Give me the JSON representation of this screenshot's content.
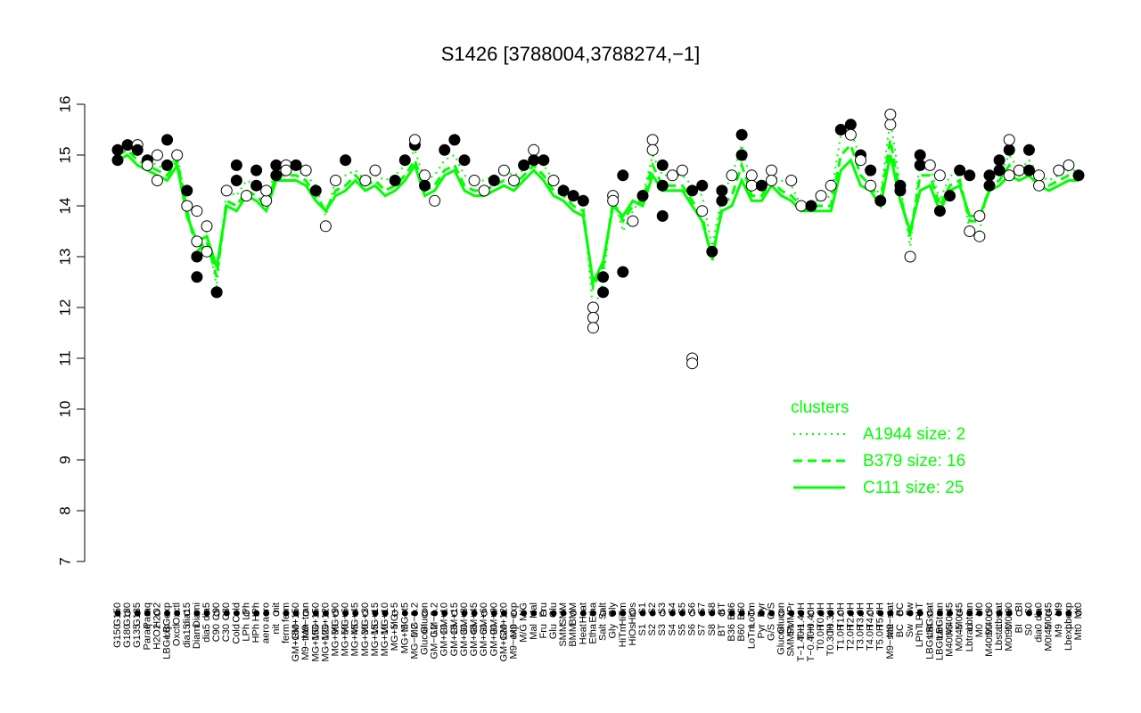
{
  "chart_data": {
    "type": "line",
    "title": "S1426 [3788004,3788274,−1]",
    "xlabel": "",
    "ylabel": "",
    "ylim": [
      7,
      16
    ],
    "yticks": [
      "7",
      "8",
      "9",
      "10",
      "11",
      "12",
      "13",
      "14",
      "15",
      "16"
    ],
    "x_tick_labels": [
      "G150",
      "G180",
      "G135",
      "Paraq",
      "H2O2",
      "LBGexp",
      "Oxctl",
      "dia15",
      "Diami",
      "dia5",
      "C90",
      "C30",
      "Cold",
      "LPh",
      "HPh",
      "aero",
      "nit",
      "ferm",
      "GM+150",
      "M9−tran",
      "MG+150",
      "MG+120",
      "MG+90",
      "MG+60",
      "MG+45",
      "MG+30",
      "MG+15",
      "MG+10",
      "MG+5",
      "MG+t5",
      "MG−0.2",
      "Glucon",
      "GM−0.2",
      "GM+10",
      "GM+15",
      "GM+30",
      "GM+45",
      "GM+60",
      "GM+90",
      "GM+120",
      "M9−exp",
      "M/G",
      "Mal",
      "Fru",
      "Glu",
      "SMM",
      "BMM",
      "Heat",
      "Etha",
      "Salt",
      "Gly",
      "HiTm",
      "HiOs",
      "S1",
      "S2",
      "S3",
      "S4",
      "S5",
      "S6",
      "S7",
      "S8",
      "BT",
      "B36",
      "B60",
      "LoTm",
      "Pyr",
      "G/S",
      "Glucon",
      "SMMPr",
      "T−1.40H",
      "T−0.40H",
      "T0.0H",
      "T0.30H",
      "T1.0H",
      "T2.0H",
      "T3.0H",
      "T4.0H",
      "T5.0H",
      "M9−stat",
      "BC",
      "Sw",
      "LPhT",
      "LBGstat",
      "LBGtran",
      "M40t45",
      "M0t45",
      "Lbtran",
      "M0",
      "M40t90",
      "Lbstat",
      "M0t90",
      "BI",
      "S0",
      "dia0",
      "M0t45",
      "M9",
      "Lbexp",
      "Mt0"
    ],
    "series": [
      {
        "name": "A1944 size: 2",
        "style": "dotted",
        "values": [
          15.1,
          15.2,
          15.0,
          14.9,
          14.8,
          14.7,
          15.0,
          14.0,
          13.0,
          13.5,
          12.4,
          14.3,
          14.2,
          14.5,
          14.4,
          14.2,
          14.7,
          14.7,
          14.7,
          14.6,
          14.4,
          13.8,
          14.5,
          14.6,
          14.7,
          14.5,
          14.6,
          14.5,
          14.6,
          14.8,
          15.1,
          14.5,
          14.6,
          14.9,
          15.0,
          14.6,
          14.5,
          14.5,
          14.6,
          14.7,
          14.6,
          14.7,
          14.9,
          14.8,
          14.5,
          14.4,
          14.1,
          14.1,
          11.9,
          12.5,
          14.2,
          13.5,
          13.9,
          14.2,
          15.0,
          14.6,
          14.6,
          14.6,
          14.4,
          14.2,
          13.2,
          14.2,
          14.6,
          15.2,
          14.4,
          14.4,
          14.6,
          14.5,
          14.4,
          14.0,
          14.1,
          14.1,
          14.2,
          15.4,
          15.5,
          14.9,
          14.5,
          14.2,
          15.7,
          14.4,
          13.2,
          14.9,
          14.8,
          14.1,
          14.6,
          14.6,
          13.5,
          13.5,
          14.5,
          14.6,
          15.0,
          14.7,
          14.9,
          14.6,
          14.5,
          14.6,
          14.7,
          14.7
        ]
      },
      {
        "name": "B379 size: 16",
        "style": "dashed",
        "values": [
          15.0,
          15.1,
          14.9,
          14.8,
          14.7,
          14.6,
          14.9,
          13.9,
          13.1,
          13.3,
          12.6,
          14.1,
          14.0,
          14.3,
          14.2,
          14.0,
          14.6,
          14.6,
          14.6,
          14.5,
          14.2,
          13.9,
          14.3,
          14.4,
          14.6,
          14.4,
          14.5,
          14.3,
          14.4,
          14.6,
          14.9,
          14.3,
          14.4,
          14.7,
          14.8,
          14.4,
          14.3,
          14.3,
          14.4,
          14.5,
          14.4,
          14.6,
          14.8,
          14.6,
          14.3,
          14.2,
          14.0,
          13.9,
          12.4,
          12.8,
          14.1,
          13.7,
          14.0,
          14.1,
          14.8,
          14.4,
          14.4,
          14.4,
          14.1,
          13.8,
          12.9,
          14.0,
          14.2,
          14.8,
          14.2,
          14.2,
          14.5,
          14.3,
          14.2,
          14.0,
          14.0,
          14.0,
          14.0,
          15.0,
          15.2,
          14.6,
          14.4,
          14.1,
          15.3,
          14.2,
          13.4,
          14.6,
          14.6,
          14.0,
          14.4,
          14.5,
          13.7,
          13.7,
          14.4,
          14.5,
          14.8,
          14.6,
          14.7,
          14.5,
          14.4,
          14.5,
          14.6,
          14.6
        ]
      },
      {
        "name": "C111 size: 25",
        "style": "solid",
        "values": [
          14.9,
          15.0,
          14.8,
          14.7,
          14.6,
          14.5,
          14.8,
          13.8,
          13.3,
          13.4,
          12.8,
          14.0,
          13.9,
          14.2,
          14.1,
          13.9,
          14.5,
          14.5,
          14.5,
          14.4,
          14.1,
          13.9,
          14.2,
          14.3,
          14.5,
          14.3,
          14.4,
          14.2,
          14.3,
          14.5,
          14.8,
          14.2,
          14.3,
          14.6,
          14.7,
          14.3,
          14.2,
          14.2,
          14.3,
          14.4,
          14.3,
          14.5,
          14.7,
          14.5,
          14.2,
          14.1,
          13.9,
          13.8,
          12.5,
          12.9,
          14.0,
          13.8,
          14.1,
          14.0,
          14.6,
          14.3,
          14.3,
          14.3,
          14.0,
          13.7,
          13.0,
          13.9,
          14.0,
          14.5,
          14.1,
          14.1,
          14.4,
          14.2,
          14.1,
          13.9,
          13.9,
          13.9,
          13.9,
          14.7,
          14.9,
          14.4,
          14.3,
          14.0,
          15.0,
          14.1,
          13.5,
          14.3,
          14.4,
          13.9,
          14.3,
          14.4,
          13.8,
          13.8,
          14.3,
          14.4,
          14.6,
          14.5,
          14.6,
          14.4,
          14.3,
          14.4,
          14.5,
          14.5
        ]
      }
    ],
    "points": [
      {
        "x": "G150",
        "y": 15.1,
        "filled": true
      },
      {
        "x": "G150",
        "y": 14.9,
        "filled": true
      },
      {
        "x": "G180",
        "y": 15.2,
        "filled": true
      },
      {
        "x": "G135",
        "y": 15.2,
        "filled": false
      },
      {
        "x": "G135",
        "y": 15.1,
        "filled": true
      },
      {
        "x": "H2O2",
        "y": 15.0,
        "filled": false
      },
      {
        "x": "Paraq",
        "y": 14.9,
        "filled": true
      },
      {
        "x": "Paraq",
        "y": 14.8,
        "filled": false
      },
      {
        "x": "H2O2",
        "y": 14.5,
        "filled": false
      },
      {
        "x": "Oxctl",
        "y": 15.0,
        "filled": false
      },
      {
        "x": "LBGexp",
        "y": 15.3,
        "filled": true
      },
      {
        "x": "LBGexp",
        "y": 14.8,
        "filled": true
      },
      {
        "x": "dia15",
        "y": 14.3,
        "filled": true
      },
      {
        "x": "dia15",
        "y": 14.0,
        "filled": false
      },
      {
        "x": "Diami",
        "y": 13.9,
        "filled": false
      },
      {
        "x": "Diami",
        "y": 13.3,
        "filled": false
      },
      {
        "x": "Diami",
        "y": 13.0,
        "filled": true
      },
      {
        "x": "Diami",
        "y": 12.6,
        "filled": true
      },
      {
        "x": "dia5",
        "y": 13.6,
        "filled": false
      },
      {
        "x": "dia5",
        "y": 13.1,
        "filled": false
      },
      {
        "x": "C90",
        "y": 12.3,
        "filled": true
      },
      {
        "x": "C90",
        "y": 12.3,
        "filled": true
      },
      {
        "x": "C30",
        "y": 14.3,
        "filled": false
      },
      {
        "x": "Cold",
        "y": 14.5,
        "filled": true
      },
      {
        "x": "Cold",
        "y": 14.8,
        "filled": true
      },
      {
        "x": "LPh",
        "y": 14.2,
        "filled": false
      },
      {
        "x": "HPh",
        "y": 14.7,
        "filled": true
      },
      {
        "x": "HPh",
        "y": 14.4,
        "filled": true
      },
      {
        "x": "aero",
        "y": 14.1,
        "filled": false
      },
      {
        "x": "aero",
        "y": 14.3,
        "filled": false
      },
      {
        "x": "nit",
        "y": 14.8,
        "filled": true
      },
      {
        "x": "nit",
        "y": 14.6,
        "filled": true
      },
      {
        "x": "ferm",
        "y": 14.8,
        "filled": false
      },
      {
        "x": "ferm",
        "y": 14.7,
        "filled": false
      },
      {
        "x": "GM+150",
        "y": 14.8,
        "filled": true
      },
      {
        "x": "M9−tran",
        "y": 14.7,
        "filled": false
      },
      {
        "x": "MG+150",
        "y": 14.3,
        "filled": true
      },
      {
        "x": "MG+120",
        "y": 13.6,
        "filled": false
      },
      {
        "x": "MG+90",
        "y": 14.5,
        "filled": false
      },
      {
        "x": "MG+60",
        "y": 14.9,
        "filled": true
      },
      {
        "x": "MG+30",
        "y": 14.5,
        "filled": false
      },
      {
        "x": "MG+15",
        "y": 14.7,
        "filled": false
      },
      {
        "x": "MG+5",
        "y": 14.5,
        "filled": true
      },
      {
        "x": "MG+t5",
        "y": 14.9,
        "filled": true
      },
      {
        "x": "MG−0.2",
        "y": 15.2,
        "filled": true
      },
      {
        "x": "MG−0.2",
        "y": 15.3,
        "filled": false
      },
      {
        "x": "Glucon",
        "y": 14.6,
        "filled": false
      },
      {
        "x": "GM−0.2",
        "y": 14.1,
        "filled": false
      },
      {
        "x": "GM+10",
        "y": 15.1,
        "filled": true
      },
      {
        "x": "GM+15",
        "y": 15.3,
        "filled": true
      },
      {
        "x": "GM+30",
        "y": 14.9,
        "filled": true
      },
      {
        "x": "GM+45",
        "y": 14.5,
        "filled": false
      },
      {
        "x": "GM+60",
        "y": 14.3,
        "filled": false
      },
      {
        "x": "GM+90",
        "y": 14.5,
        "filled": true
      },
      {
        "x": "GM+120",
        "y": 14.7,
        "filled": false
      },
      {
        "x": "M9−exp",
        "y": 14.5,
        "filled": false
      },
      {
        "x": "M/G",
        "y": 14.8,
        "filled": true
      },
      {
        "x": "Mal",
        "y": 15.1,
        "filled": false
      },
      {
        "x": "Mal",
        "y": 14.9,
        "filled": true
      },
      {
        "x": "Fru",
        "y": 14.9,
        "filled": true
      },
      {
        "x": "Glu",
        "y": 14.5,
        "filled": false
      },
      {
        "x": "SMM",
        "y": 14.3,
        "filled": true
      },
      {
        "x": "BMM",
        "y": 14.2,
        "filled": true
      },
      {
        "x": "Heat",
        "y": 14.1,
        "filled": true
      },
      {
        "x": "Etha",
        "y": 12.0,
        "filled": false
      },
      {
        "x": "Etha",
        "y": 11.8,
        "filled": false
      },
      {
        "x": "Etha",
        "y": 11.6,
        "filled": false
      },
      {
        "x": "Salt",
        "y": 12.6,
        "filled": true
      },
      {
        "x": "Salt",
        "y": 12.3,
        "filled": true
      },
      {
        "x": "Gly",
        "y": 14.2,
        "filled": false
      },
      {
        "x": "Gly",
        "y": 14.1,
        "filled": false
      },
      {
        "x": "HiTm",
        "y": 14.6,
        "filled": true
      },
      {
        "x": "HiTm",
        "y": 12.7,
        "filled": true
      },
      {
        "x": "HiOs",
        "y": 13.7,
        "filled": false
      },
      {
        "x": "S1",
        "y": 14.2,
        "filled": true
      },
      {
        "x": "S2",
        "y": 15.3,
        "filled": false
      },
      {
        "x": "S2",
        "y": 15.1,
        "filled": false
      },
      {
        "x": "S3",
        "y": 14.8,
        "filled": true
      },
      {
        "x": "S3",
        "y": 14.4,
        "filled": true
      },
      {
        "x": "S4",
        "y": 14.6,
        "filled": false
      },
      {
        "x": "S3",
        "y": 13.8,
        "filled": true
      },
      {
        "x": "S5",
        "y": 14.7,
        "filled": false
      },
      {
        "x": "S6",
        "y": 14.3,
        "filled": true
      },
      {
        "x": "S7",
        "y": 14.4,
        "filled": true
      },
      {
        "x": "S7",
        "y": 13.9,
        "filled": false
      },
      {
        "x": "S8",
        "y": 13.1,
        "filled": true
      },
      {
        "x": "S6",
        "y": 11.0,
        "filled": false
      },
      {
        "x": "S6",
        "y": 10.9,
        "filled": false
      },
      {
        "x": "BT",
        "y": 14.3,
        "filled": true
      },
      {
        "x": "BT",
        "y": 14.1,
        "filled": true
      },
      {
        "x": "B36",
        "y": 14.6,
        "filled": false
      },
      {
        "x": "B60",
        "y": 15.4,
        "filled": true
      },
      {
        "x": "B60",
        "y": 15.0,
        "filled": true
      },
      {
        "x": "LoTm",
        "y": 14.6,
        "filled": false
      },
      {
        "x": "LoTm",
        "y": 14.4,
        "filled": false
      },
      {
        "x": "Pyr",
        "y": 14.4,
        "filled": true
      },
      {
        "x": "G/S",
        "y": 14.7,
        "filled": false
      },
      {
        "x": "G/S",
        "y": 14.5,
        "filled": false
      },
      {
        "x": "Glucon",
        "y": 14.4,
        "filled": true
      },
      {
        "x": "SMMPr",
        "y": 14.5,
        "filled": false
      },
      {
        "x": "T−1.40H",
        "y": 14.0,
        "filled": false
      },
      {
        "x": "T−0.40H",
        "y": 14.0,
        "filled": true
      },
      {
        "x": "T0.0H",
        "y": 14.2,
        "filled": false
      },
      {
        "x": "T0.30H",
        "y": 14.4,
        "filled": false
      },
      {
        "x": "T1.0H",
        "y": 15.5,
        "filled": true
      },
      {
        "x": "T2.0H",
        "y": 15.6,
        "filled": true
      },
      {
        "x": "T2.0H",
        "y": 15.4,
        "filled": false
      },
      {
        "x": "T3.0H",
        "y": 15.0,
        "filled": true
      },
      {
        "x": "T3.0H",
        "y": 14.9,
        "filled": false
      },
      {
        "x": "T4.0H",
        "y": 14.7,
        "filled": true
      },
      {
        "x": "T4.0H",
        "y": 14.4,
        "filled": false
      },
      {
        "x": "T5.0H",
        "y": 14.1,
        "filled": true
      },
      {
        "x": "M9−stat",
        "y": 15.6,
        "filled": false
      },
      {
        "x": "M9−stat",
        "y": 15.8,
        "filled": false
      },
      {
        "x": "BC",
        "y": 14.4,
        "filled": true
      },
      {
        "x": "BC",
        "y": 14.3,
        "filled": true
      },
      {
        "x": "Sw",
        "y": 13.0,
        "filled": false
      },
      {
        "x": "LPhT",
        "y": 15.0,
        "filled": true
      },
      {
        "x": "LPhT",
        "y": 14.8,
        "filled": true
      },
      {
        "x": "LBGstat",
        "y": 14.8,
        "filled": false
      },
      {
        "x": "LBGtran",
        "y": 14.6,
        "filled": false
      },
      {
        "x": "LBGtran",
        "y": 13.9,
        "filled": true
      },
      {
        "x": "M40t45",
        "y": 14.2,
        "filled": true
      },
      {
        "x": "M0t45",
        "y": 14.7,
        "filled": true
      },
      {
        "x": "Lbtran",
        "y": 14.6,
        "filled": true
      },
      {
        "x": "Lbtran",
        "y": 13.5,
        "filled": false
      },
      {
        "x": "M0",
        "y": 13.8,
        "filled": false
      },
      {
        "x": "M0",
        "y": 13.4,
        "filled": false
      },
      {
        "x": "M40t90",
        "y": 14.6,
        "filled": true
      },
      {
        "x": "M40t90",
        "y": 14.4,
        "filled": true
      },
      {
        "x": "M0t90",
        "y": 15.1,
        "filled": true
      },
      {
        "x": "M0t90",
        "y": 14.6,
        "filled": false
      },
      {
        "x": "M0t90",
        "y": 15.3,
        "filled": false
      },
      {
        "x": "Lbstat",
        "y": 14.9,
        "filled": true
      },
      {
        "x": "Lbstat",
        "y": 14.7,
        "filled": true
      },
      {
        "x": "BI",
        "y": 14.7,
        "filled": false
      },
      {
        "x": "S0",
        "y": 15.1,
        "filled": true
      },
      {
        "x": "S0",
        "y": 14.7,
        "filled": true
      },
      {
        "x": "dia0",
        "y": 14.4,
        "filled": false
      },
      {
        "x": "dia0",
        "y": 14.6,
        "filled": false
      },
      {
        "x": "M9",
        "y": 14.7,
        "filled": false
      },
      {
        "x": "Lbexp",
        "y": 14.8,
        "filled": false
      },
      {
        "x": "Mt0",
        "y": 14.6,
        "filled": true
      }
    ],
    "legend": {
      "title": "clusters",
      "position": "right",
      "entries": [
        {
          "label": "A1944 size: 2",
          "style": "dotted"
        },
        {
          "label": "B379 size: 16",
          "style": "dashed"
        },
        {
          "label": "C111 size: 25",
          "style": "solid"
        }
      ]
    },
    "colors": {
      "series": "#00ff00",
      "legend": "#00ff00",
      "axis": "#000000"
    },
    "grid": false
  }
}
